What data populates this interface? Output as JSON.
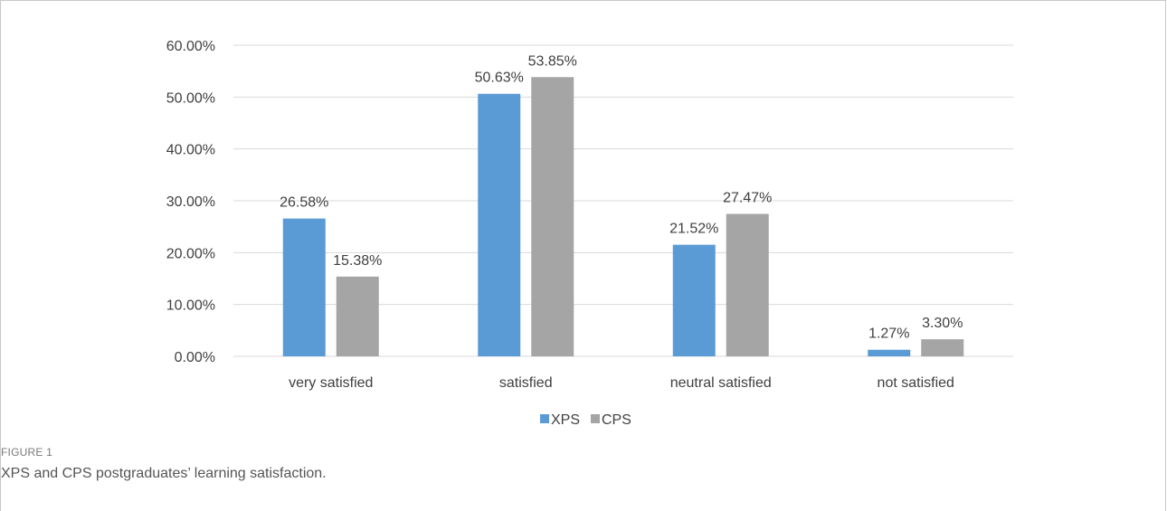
{
  "chart_data": {
    "type": "bar",
    "categories": [
      "very satisfied",
      "satisfied",
      "neutral satisfied",
      "not satisfied"
    ],
    "series": [
      {
        "name": "XPS",
        "values": [
          26.58,
          50.63,
          21.52,
          1.27
        ],
        "labels": [
          "26.58%",
          "50.63%",
          "21.52%",
          "1.27%"
        ],
        "color": "#5b9bd5"
      },
      {
        "name": "CPS",
        "values": [
          15.38,
          53.85,
          27.47,
          3.3
        ],
        "labels": [
          "15.38%",
          "53.85%",
          "27.47%",
          "3.30%"
        ],
        "color": "#a5a5a5"
      }
    ],
    "yticks": [
      "0.00%",
      "10.00%",
      "20.00%",
      "30.00%",
      "40.00%",
      "50.00%",
      "60.00%"
    ],
    "ylim": [
      0,
      60
    ],
    "grid": true,
    "legend": "bottom"
  },
  "caption": {
    "label": "FIGURE 1",
    "text": "XPS and CPS postgraduates’ learning satisfaction."
  },
  "colors": {
    "gridline": "#d9d9d9",
    "tick_text": "#404040",
    "border": "#c8c8c8"
  }
}
